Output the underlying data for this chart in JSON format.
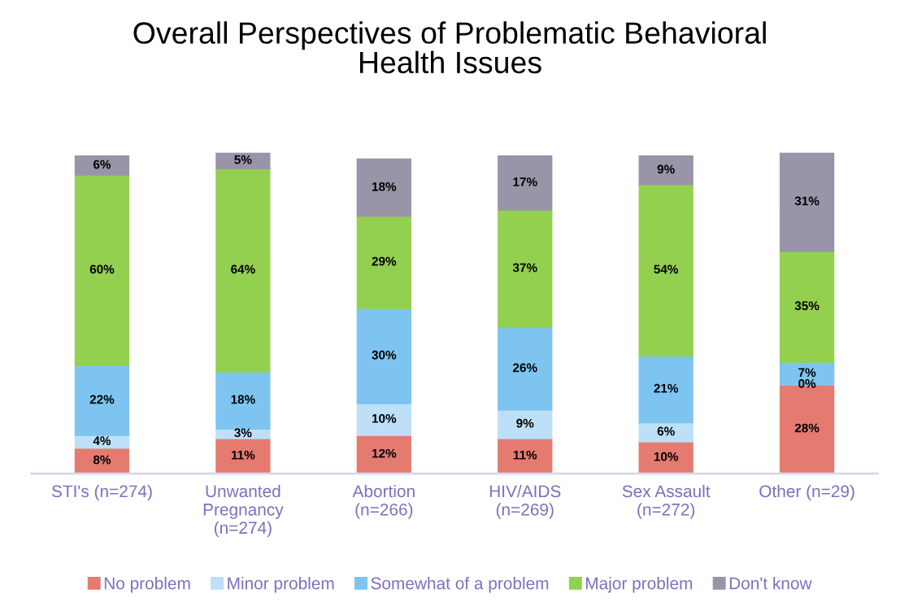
{
  "chart_data": {
    "type": "bar",
    "title": "Overall Perspectives of Problematic Behavioral\nHealth Issues",
    "categories": [
      "STI's (n=274)",
      "Unwanted\nPregnancy\n(n=274)",
      "Abortion\n(n=266)",
      "HIV/AIDS\n(n=269)",
      "Sex Assault\n(n=272)",
      "Other (n=29)"
    ],
    "stacked": true,
    "tick_labels": "x",
    "legend": "bottom",
    "grid": false,
    "series": [
      {
        "name": "No problem",
        "color": "#e57b70",
        "values": [
          8,
          11,
          12,
          11,
          10,
          28
        ],
        "value_labels": [
          "8%",
          "11%",
          "12%",
          "11%",
          "10%",
          "28%"
        ]
      },
      {
        "name": "Minor problem",
        "color": "#bde0f8",
        "values": [
          4,
          3,
          10,
          9,
          6,
          0
        ],
        "value_labels": [
          "4%",
          "3%",
          "10%",
          "9%",
          "6%",
          "0%"
        ]
      },
      {
        "name": "Somewhat of a problem",
        "color": "#7dc5f0",
        "values": [
          22,
          18,
          30,
          26,
          21,
          7
        ],
        "value_labels": [
          "22%",
          "18%",
          "30%",
          "26%",
          "21%",
          "7%"
        ]
      },
      {
        "name": "Major problem",
        "color": "#93d04f",
        "values": [
          60,
          64,
          29,
          37,
          54,
          35
        ],
        "value_labels": [
          "60%",
          "64%",
          "29%",
          "37%",
          "54%",
          "35%"
        ]
      },
      {
        "name": "Don't know",
        "color": "#9a94a8",
        "values": [
          6,
          5,
          18,
          17,
          9,
          31
        ],
        "value_labels": [
          "6%",
          "5%",
          "18%",
          "17%",
          "9%",
          "31%"
        ]
      }
    ]
  }
}
